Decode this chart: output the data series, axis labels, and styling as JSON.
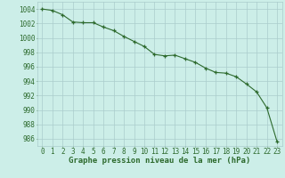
{
  "hours": [
    0,
    1,
    2,
    3,
    4,
    5,
    6,
    7,
    8,
    9,
    10,
    11,
    12,
    13,
    14,
    15,
    16,
    17,
    18,
    19,
    20,
    21,
    22,
    23
  ],
  "pressure": [
    1004,
    1003.8,
    1003.2,
    1002.2,
    1002.1,
    1002.1,
    1001.5,
    1001.0,
    1000.2,
    999.5,
    998.8,
    997.7,
    997.5,
    997.6,
    997.1,
    996.6,
    995.8,
    995.2,
    995.1,
    994.6,
    993.6,
    992.5,
    990.3,
    985.6
  ],
  "line_color": "#2d6a2d",
  "bg_color": "#cceee8",
  "grid_color": "#aacccc",
  "xlabel": "Graphe pression niveau de la mer (hPa)",
  "ylim": [
    985,
    1005
  ],
  "xlim": [
    -0.5,
    23.5
  ],
  "yticks": [
    986,
    988,
    990,
    992,
    994,
    996,
    998,
    1000,
    1002,
    1004
  ],
  "xticks": [
    0,
    1,
    2,
    3,
    4,
    5,
    6,
    7,
    8,
    9,
    10,
    11,
    12,
    13,
    14,
    15,
    16,
    17,
    18,
    19,
    20,
    21,
    22,
    23
  ],
  "tick_fontsize": 5.5,
  "xlabel_fontsize": 6.5
}
